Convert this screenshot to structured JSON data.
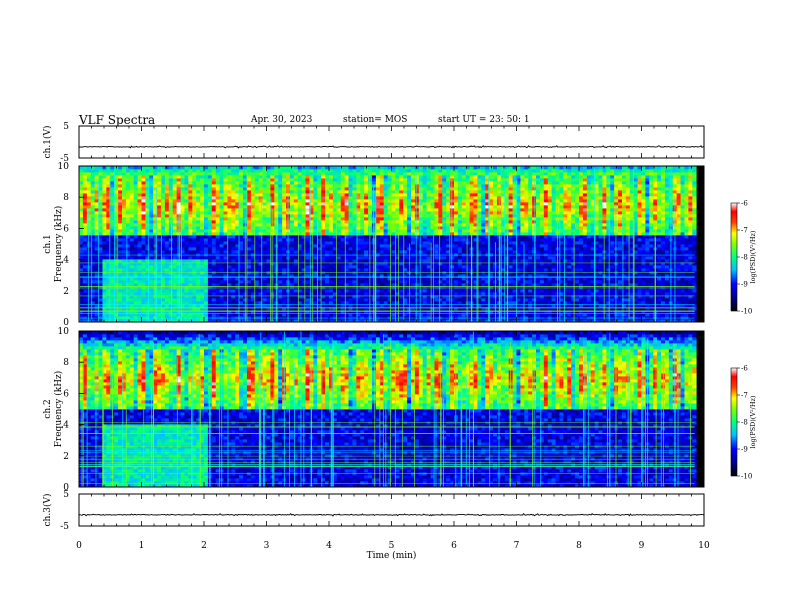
{
  "header": {
    "title": "VLF Spectra",
    "date": "Apr. 30, 2023",
    "station": "station= MOS",
    "start": "start  UT  =   23: 50: 1"
  },
  "chart_data": [
    {
      "type": "line",
      "panel": "waveform-ch1",
      "ylabel": "ch.1(V)",
      "ylim": [
        -5,
        5
      ],
      "yticks": [
        "5",
        "-5"
      ],
      "xlim": [
        0,
        10
      ],
      "baseline": -1.5
    },
    {
      "type": "heatmap",
      "panel": "spectrogram-ch1",
      "ylabel": "ch.1\nFrequency (kHz)",
      "ylim": [
        0,
        10
      ],
      "yticks": [
        "0",
        "2",
        "4",
        "6",
        "8",
        "10"
      ],
      "xlim": [
        0,
        10
      ],
      "colorbar": {
        "label": "log(PSD)(V²/Hz)",
        "range": [
          -10,
          -6
        ],
        "ticks": [
          "-6",
          "-7",
          "-8",
          "-9",
          "-10"
        ]
      },
      "dominant_band_khz": [
        5.5,
        9.5
      ]
    },
    {
      "type": "heatmap",
      "panel": "spectrogram-ch2",
      "ylabel": "ch.2\nFrequency (kHz)",
      "ylim": [
        0,
        10
      ],
      "yticks": [
        "0",
        "2",
        "4",
        "6",
        "8",
        "10"
      ],
      "xlim": [
        0,
        10
      ],
      "colorbar": {
        "label": "log(PSD)(V²/Hz)",
        "range": [
          -10,
          -6
        ],
        "ticks": [
          "-6",
          "-7",
          "-8",
          "-9",
          "-10"
        ]
      },
      "dominant_band_khz": [
        5.0,
        8.8
      ]
    },
    {
      "type": "line",
      "panel": "waveform-ch3",
      "ylabel": "ch.3(V)",
      "ylim": [
        -5,
        5
      ],
      "yticks": [
        "5",
        "-5"
      ],
      "xlim": [
        0,
        10
      ],
      "baseline": -1.5
    }
  ],
  "xaxis": {
    "label": "Time  (min)",
    "ticks": [
      "0",
      "1",
      "2",
      "3",
      "4",
      "5",
      "6",
      "7",
      "8",
      "9",
      "10"
    ]
  },
  "colors": {
    "cmap": [
      "#000000",
      "#00008b",
      "#0000ff",
      "#0080ff",
      "#00ffff",
      "#00ff80",
      "#80ff00",
      "#ffff00",
      "#ff8000",
      "#ff0000",
      "#ffffff"
    ]
  }
}
